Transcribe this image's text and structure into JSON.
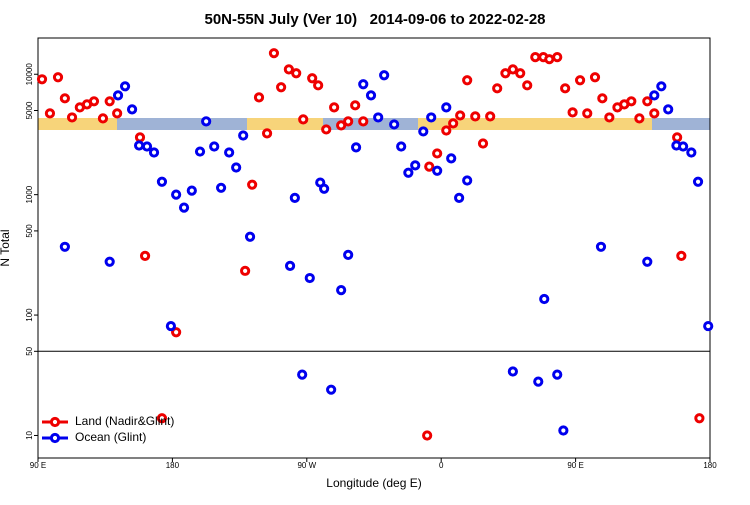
{
  "chart_data": {
    "type": "scatter",
    "title": "50N-55N July (Ver 10)   2014-09-06 to 2022-02-28",
    "xlabel": "Longitude (deg E)",
    "ylabel": "N Total",
    "xlim": [
      90,
      540
    ],
    "ylim": [
      6.5,
      20000
    ],
    "log_y": true,
    "hline": 50,
    "xticks": [
      {
        "value": 90,
        "label": "90 E"
      },
      {
        "value": 180,
        "label": "180"
      },
      {
        "value": 270,
        "label": "90 W"
      },
      {
        "value": 360,
        "label": "0"
      },
      {
        "value": 450,
        "label": "90 E"
      },
      {
        "value": 540,
        "label": "180"
      }
    ],
    "yticks": [
      10,
      50,
      100,
      500,
      1000,
      5000,
      10000
    ],
    "legend": "bottom-left",
    "series": [
      {
        "name": "Land (Nadir&Glint)",
        "color": "#ee0000",
        "x": [
          92.7,
          98,
          103.4,
          108,
          112.8,
          118,
          122.8,
          127.5,
          133.5,
          138,
          143,
          158.3,
          161.7,
          173,
          182.5,
          228.7,
          233.4,
          238,
          243.4,
          248,
          252.8,
          258,
          262.9,
          267.6,
          273.6,
          277.6,
          283,
          288.3,
          293,
          297.7,
          302.4,
          307.8,
          350.6,
          352,
          357.3,
          363.4,
          368,
          372.7,
          377.4,
          382.8,
          388,
          392.8,
          397.5,
          403,
          408,
          412.9,
          417.6,
          423,
          428.4,
          432.4,
          437.7,
          443,
          448,
          453,
          457.8,
          463,
          467.9,
          472.6,
          478,
          482.6,
          487.3,
          492.7,
          498,
          502.7,
          518,
          520.8,
          532.9
        ],
        "values": [
          9080,
          4730,
          9440,
          6310,
          4380,
          5310,
          5620,
          5960,
          4300,
          5960,
          4730,
          2990,
          310,
          13.9,
          72,
          233,
          1210,
          6430,
          3230,
          14960,
          7800,
          10970,
          10190,
          4220,
          9260,
          8090,
          3480,
          5310,
          3760,
          4060,
          5520,
          4060,
          10,
          1710,
          2200,
          3410,
          3910,
          4550,
          8910,
          4470,
          2660,
          4470,
          7640,
          10190,
          10970,
          10190,
          8090,
          13870,
          13870,
          13340,
          13870,
          7640,
          4820,
          8910,
          4730,
          9440,
          6310,
          4380,
          5310,
          5620,
          5960,
          4300,
          5960,
          4730,
          2990,
          310,
          13.9
        ]
      },
      {
        "name": "Ocean (Glint)",
        "color": "#0000ee",
        "x": [
          108,
          138,
          143.6,
          148.3,
          153,
          157.7,
          163,
          167.7,
          173,
          179,
          182.5,
          187.8,
          193,
          198.5,
          202.6,
          208,
          212.6,
          218,
          222.7,
          227.4,
          232,
          258.8,
          262,
          266.9,
          272,
          279,
          281.6,
          286.3,
          293,
          297.7,
          303,
          307.8,
          313,
          317.8,
          321.8,
          328.5,
          333.2,
          338,
          342.6,
          348,
          353.3,
          357.3,
          363.4,
          366.7,
          372,
          377.4,
          408,
          425,
          429,
          437.7,
          441.8,
          467,
          498,
          502.7,
          507.4,
          512,
          517.5,
          522,
          527.5,
          532,
          538.8
        ],
        "values": [
          369,
          277,
          6680,
          7940,
          5110,
          2560,
          2510,
          2240,
          1280,
          81,
          1000,
          780,
          1080,
          2280,
          4060,
          2510,
          1140,
          2240,
          1680,
          3100,
          447,
          256,
          940,
          32,
          203,
          1260,
          1120,
          24,
          161,
          316,
          2470,
          8260,
          6680,
          4380,
          9810,
          3830,
          2510,
          1520,
          1750,
          3350,
          4380,
          1580,
          5310,
          2000,
          940,
          1310,
          34,
          28,
          136,
          32,
          11,
          369,
          277,
          6680,
          7940,
          5110,
          2560,
          2510,
          2240,
          1280,
          81
        ]
      }
    ]
  }
}
